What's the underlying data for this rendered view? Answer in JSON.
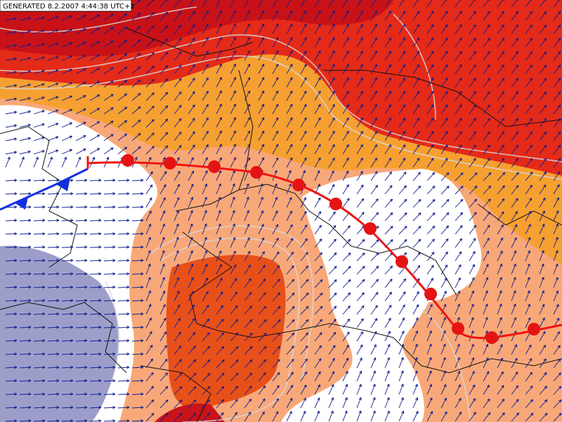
{
  "header": {
    "title": "GENERATED 8.2.2007 4:44:38 UTC+1"
  }
}
